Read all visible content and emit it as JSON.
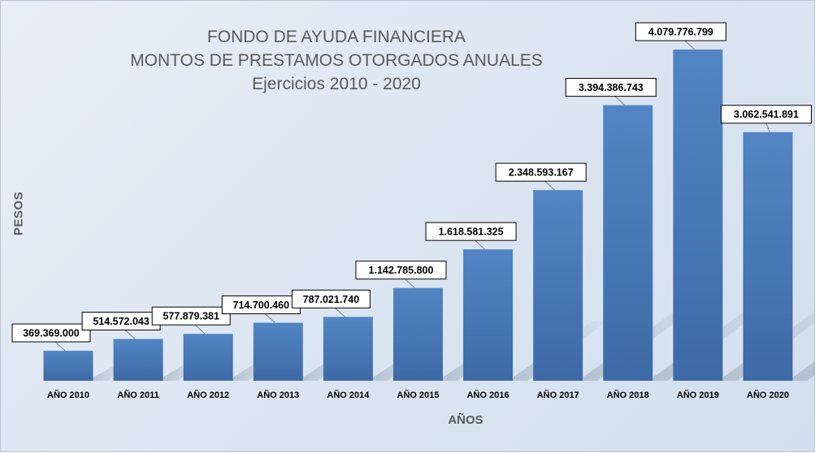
{
  "chart_data": {
    "type": "bar",
    "title": [
      "FONDO DE AYUDA FINANCIERA",
      "MONTOS DE PRESTAMOS OTORGADOS ANUALES",
      "Ejercicios 2010 - 2020"
    ],
    "xlabel": "AÑOS",
    "ylabel": "PESOS",
    "categories": [
      "AÑO 2010",
      "AÑO 2011",
      "AÑO 2012",
      "AÑO 2013",
      "AÑO 2014",
      "AÑO 2015",
      "AÑO 2016",
      "AÑO 2017",
      "AÑO 2018",
      "AÑO 2019",
      "AÑO 2020"
    ],
    "values": [
      369369000,
      514572043,
      577879381,
      714700460,
      787021740,
      1142785800,
      1618581325,
      2348593167,
      3394386743,
      4079776799,
      3062541891
    ],
    "data_labels": [
      "369.369.000",
      "514.572.043",
      "577.879.381",
      "714.700.460",
      "787.021.740",
      "1.142.785.800",
      "1.618.581.325",
      "2.348.593.167",
      "3.394.386.743",
      "4.079.776.799",
      "3.062.541.891"
    ],
    "ylim": [
      0,
      4500000000
    ],
    "grid": false,
    "legend": "none",
    "bar_color": "#4a7ab8",
    "background_color": "#dce6f2"
  }
}
